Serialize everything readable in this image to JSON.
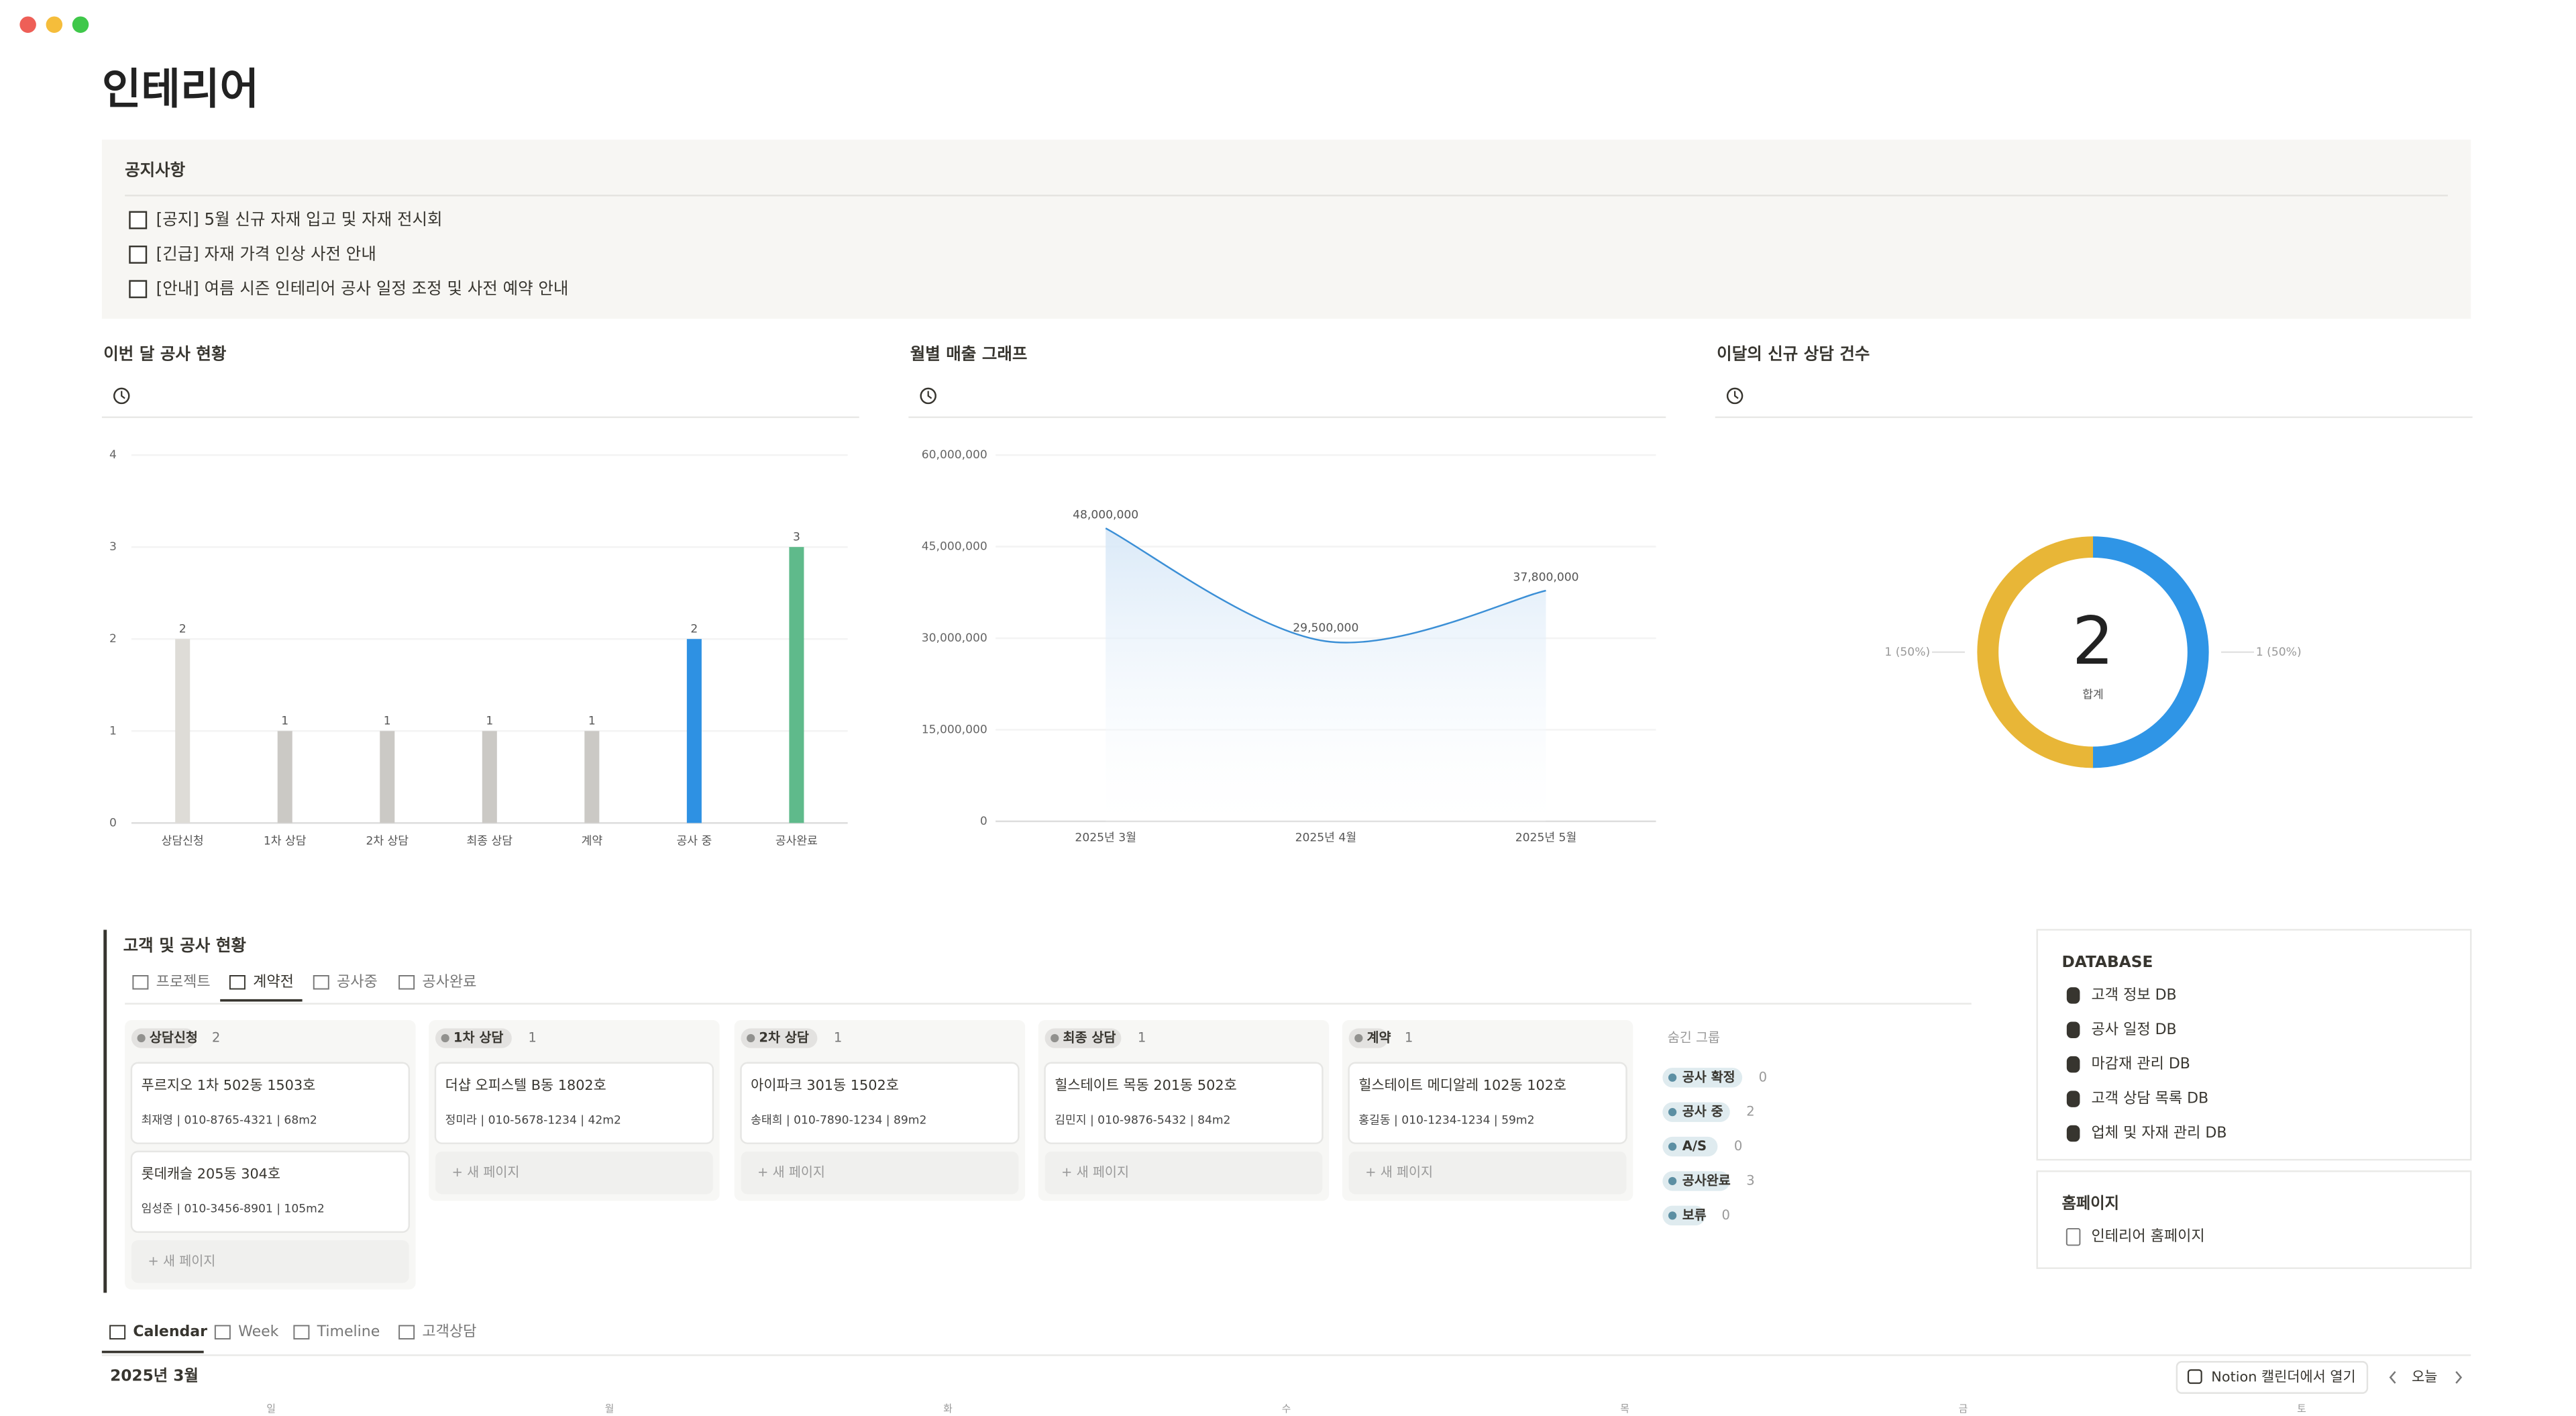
{
  "page": {
    "title": "인테리어"
  },
  "notice": {
    "heading": "공지사항",
    "items": [
      "[공지] 5월 신규 자재 입고 및 자재 전시회",
      "[긴급] 자재 가격 인상 사전 안내",
      "[안내] 여름 시즌 인테리어 공사 일정 조정 및 사전 예약 안내"
    ]
  },
  "charts": [
    {
      "type": "bar",
      "title": "이번 달 공사 현황",
      "categories": [
        "상담신청",
        "1차 상담",
        "2차 상담",
        "최종 상담",
        "계약",
        "공사 중",
        "공사완료"
      ],
      "values": [
        2,
        1,
        1,
        1,
        1,
        2,
        3
      ],
      "colors": [
        "#dedcd7",
        "#cbc9c5",
        "#cbc9c5",
        "#cbc9c5",
        "#cbc9c5",
        "#2e91e3",
        "#5fba8b"
      ],
      "ylim": [
        0,
        4
      ],
      "yticks": [
        0,
        1,
        2,
        3,
        4
      ],
      "grid": true
    },
    {
      "type": "line",
      "title": "월별 매출 그래프",
      "categories": [
        "2025년 3월",
        "2025년 4월",
        "2025년 5월"
      ],
      "values": [
        48000000,
        29500000,
        37800000
      ],
      "value_labels": [
        "48,000,000",
        "29,500,000",
        "37,800,000"
      ],
      "color": "#3b8fd6",
      "ylim": [
        0,
        60000000
      ],
      "yticks": [
        0,
        {
          "value": 15000000,
          "label": "15,000,000"
        },
        {
          "value": 30000000,
          "label": "30,000,000"
        },
        {
          "value": 45000000,
          "label": "45,000,000"
        },
        {
          "value": 60000000,
          "label": "60,000,000"
        }
      ],
      "grid": true
    },
    {
      "type": "donut",
      "title": "이달의 신규 상담 건수",
      "total": 2,
      "total_label": "합계",
      "values": [
        1,
        1
      ],
      "value_labels": [
        "1 (50%)",
        "1 (50%)"
      ],
      "colors": [
        "#2f95e6",
        "#e8b637"
      ]
    }
  ],
  "board": {
    "heading": "고객 및 공사 현황",
    "tabs": [
      "프로젝트",
      "계약전",
      "공사중",
      "공사완료"
    ],
    "active_tab": 1,
    "columns": [
      {
        "name": "상담신청",
        "count": 2,
        "cards": [
          {
            "title": "푸르지오 1차 502동 1503호",
            "detail": "최재영 | 010-8765-4321 | 68m2"
          },
          {
            "title": "롯데캐슬 205동 304호",
            "detail": "임성준 | 010-3456-8901 | 105m2"
          }
        ]
      },
      {
        "name": "1차 상담",
        "count": 1,
        "cards": [
          {
            "title": "더샵 오피스텔 B동 1802호",
            "detail": "정미라 | 010-5678-1234 | 42m2"
          }
        ]
      },
      {
        "name": "2차 상담",
        "count": 1,
        "cards": [
          {
            "title": "아이파크 301동 1502호",
            "detail": "송태희 | 010-7890-1234 | 89m2"
          }
        ]
      },
      {
        "name": "최종 상담",
        "count": 1,
        "cards": [
          {
            "title": "힐스테이트 목동 201동 502호",
            "detail": "김민지 | 010-9876-5432 | 84m2"
          }
        ]
      },
      {
        "name": "계약",
        "count": 1,
        "cards": [
          {
            "title": "힐스테이트 메디알레 102동 102호",
            "detail": "홍길동 | 010-1234-1234 | 59m2"
          }
        ]
      }
    ],
    "new_page": "+ 새 페이지",
    "hidden_heading": "숨긴 그룹",
    "hidden_groups": [
      {
        "name": "공사 확정",
        "count": 0
      },
      {
        "name": "공사 중",
        "count": 2
      },
      {
        "name": "A/S",
        "count": 0
      },
      {
        "name": "공사완료",
        "count": 3
      },
      {
        "name": "보류",
        "count": 0
      }
    ]
  },
  "sidebar": {
    "database_heading": "DATABASE",
    "databases": [
      "고객 정보 DB",
      "공사 일정 DB",
      "마감재 관리 DB",
      "고객 상담 목록 DB",
      "업체 및 자재 관리 DB"
    ],
    "homepage_heading": "홈페이지",
    "homepage": "인테리어 홈페이지"
  },
  "calendar": {
    "tabs": [
      "Calendar",
      "Week",
      "Timeline",
      "고객상담"
    ],
    "month": "2025년 3월",
    "open_button": "Notion 캘린더에서 열기",
    "today": "오늘",
    "weekdays": [
      "일",
      "월",
      "화",
      "수",
      "목",
      "금",
      "토"
    ]
  }
}
